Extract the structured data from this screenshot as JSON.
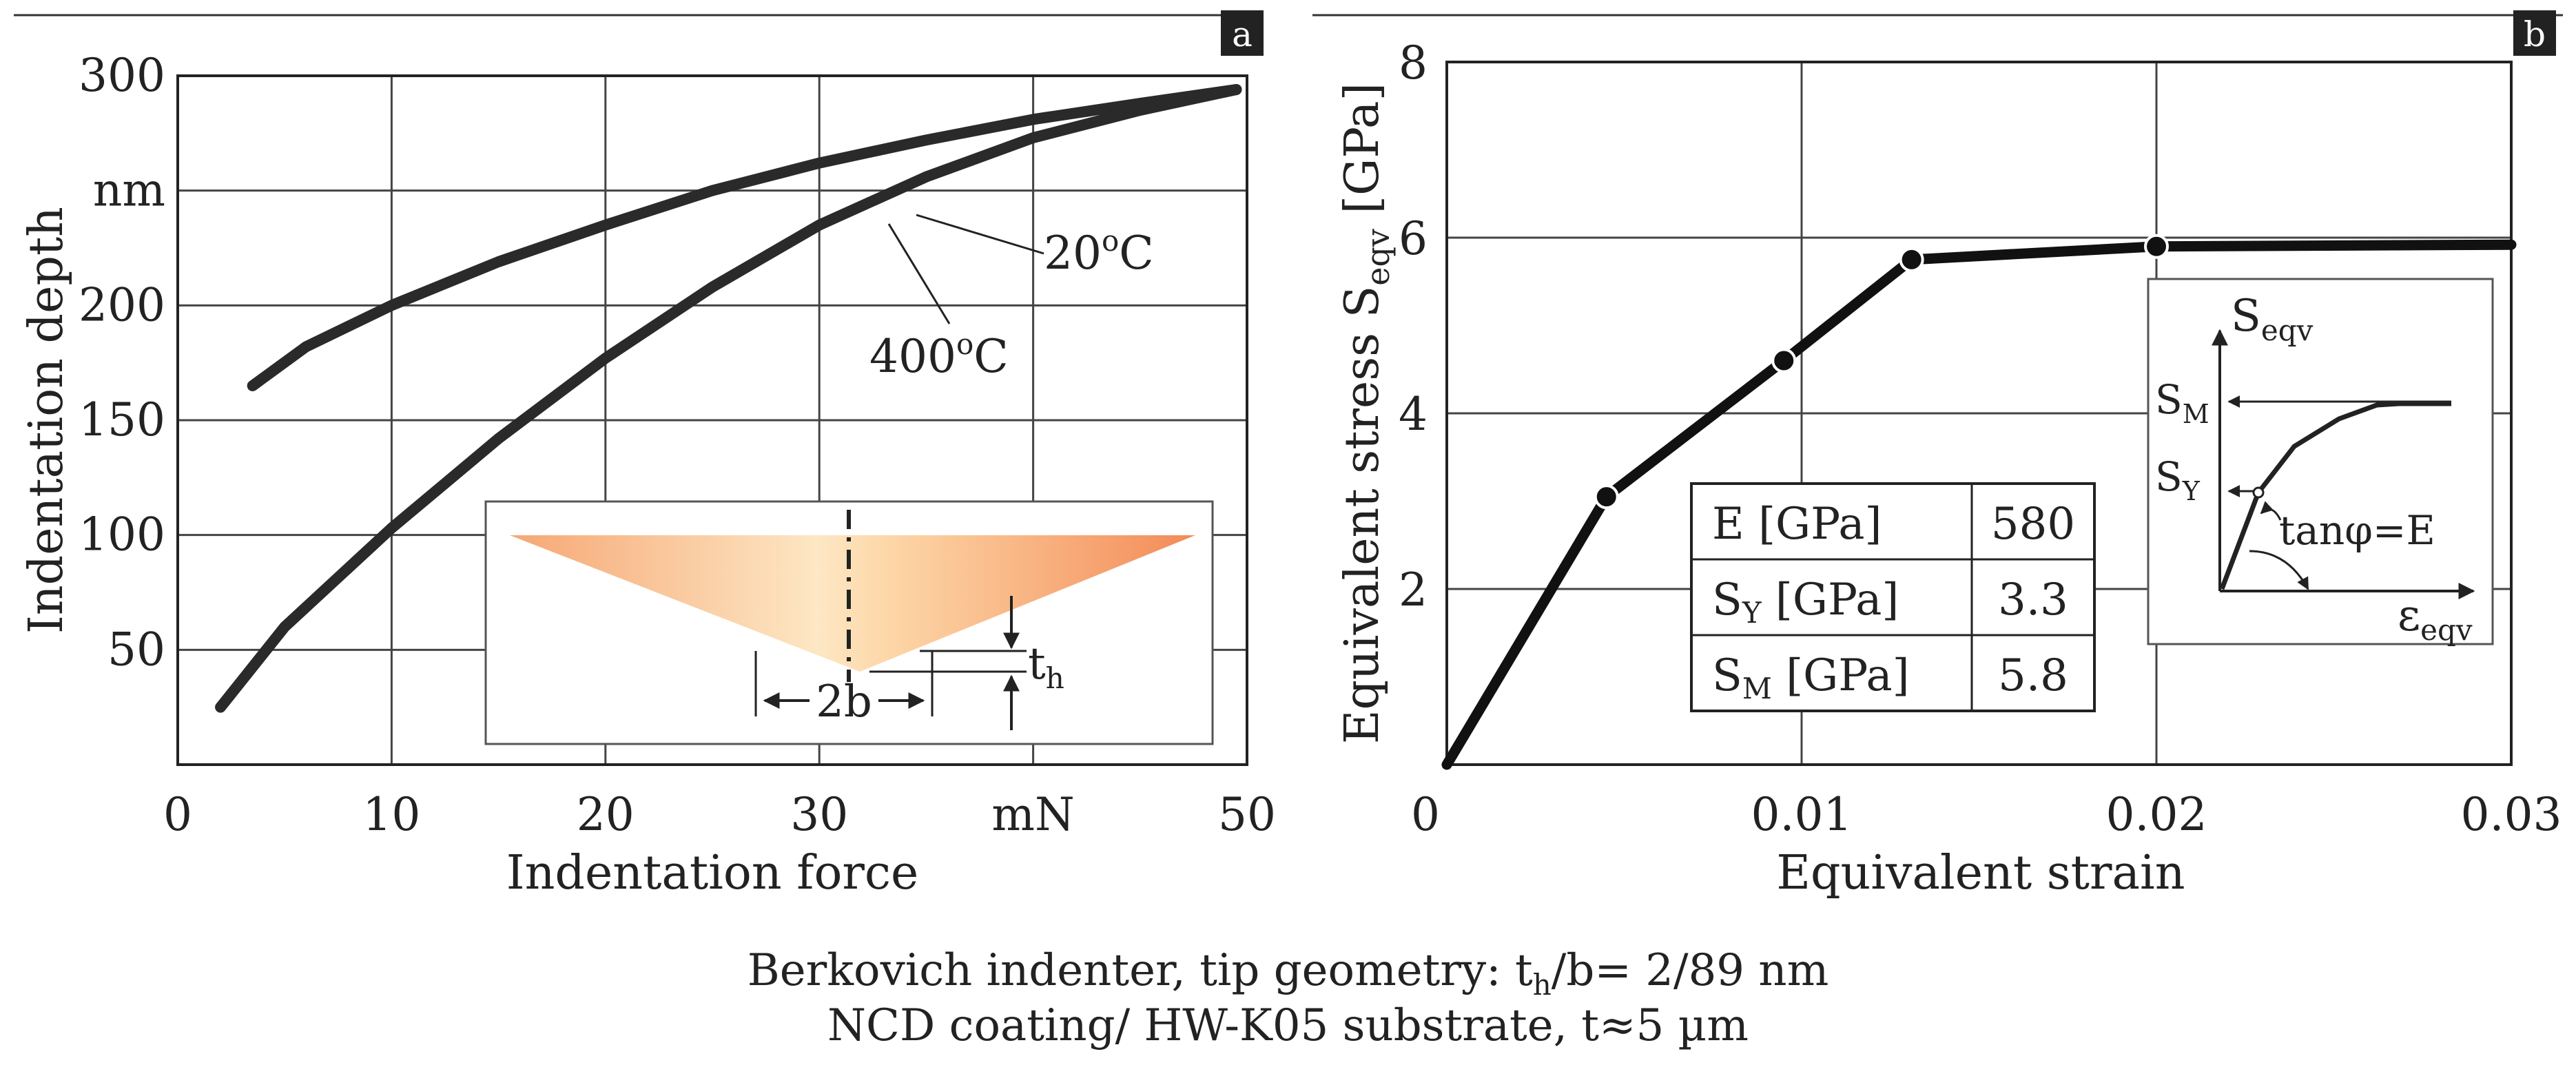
{
  "chart_data": [
    {
      "type": "line",
      "panel_label": "a",
      "xlabel": "Indentation force",
      "ylabel": "Indentation depth",
      "xlim": [
        0,
        50
      ],
      "ylim": [
        0,
        300
      ],
      "x_ticks": [
        "0",
        "10",
        "20",
        "30",
        "mN",
        "50"
      ],
      "y_ticks": [
        "50",
        "100",
        "150",
        "200",
        "nm",
        "300"
      ],
      "grid": true,
      "series": [
        {
          "name": "20oC",
          "label_base": "20",
          "label_sup": "o",
          "label_unit": "C",
          "x": [
            3.5,
            6,
            10,
            15,
            20,
            25,
            30,
            35,
            40,
            45,
            49.5
          ],
          "y": [
            165,
            182,
            200,
            219,
            235,
            250,
            262,
            272,
            281,
            288,
            294
          ]
        },
        {
          "name": "400oC",
          "label_base": "400",
          "label_sup": "o",
          "label_unit": "C",
          "x": [
            2,
            5,
            10,
            15,
            20,
            25,
            30,
            35,
            40,
            45,
            49.5
          ],
          "y": [
            25,
            60,
            103,
            142,
            177,
            208,
            235,
            256,
            273,
            285,
            294
          ]
        }
      ],
      "inset": {
        "label_2b": "2b",
        "label_th": "t",
        "label_th_sub": "h"
      }
    },
    {
      "type": "line",
      "panel_label": "b",
      "xlabel": "Equivalent strain",
      "ylabel_main": "Equivalent stress S",
      "ylabel_sub": "eqv",
      "ylabel_unit": " [GPa]",
      "xlim": [
        0,
        0.03
      ],
      "ylim": [
        0,
        8
      ],
      "x_ticks": [
        "0",
        "0.01",
        "0.02",
        "0.03"
      ],
      "y_ticks": [
        "2",
        "4",
        "6",
        "8"
      ],
      "grid": true,
      "series": [
        {
          "name": "stress-strain",
          "x": [
            0,
            0.0045,
            0.0095,
            0.0131,
            0.02,
            0.03
          ],
          "y": [
            0,
            3.05,
            4.6,
            5.75,
            5.9,
            5.92
          ]
        }
      ],
      "points": [
        {
          "x": 0.0045,
          "y": 3.05
        },
        {
          "x": 0.0095,
          "y": 4.6
        },
        {
          "x": 0.0131,
          "y": 5.75
        },
        {
          "x": 0.02,
          "y": 5.9
        }
      ],
      "table": [
        {
          "main": "E",
          "sub": "",
          "unit": " [GPa]",
          "value": "580"
        },
        {
          "main": "S",
          "sub": "Y",
          "unit": " [GPa]",
          "value": "3.3"
        },
        {
          "main": "S",
          "sub": "M",
          "unit": " [GPa]",
          "value": "5.8"
        }
      ],
      "inset": {
        "y_axis_main": "S",
        "y_axis_sub": "eqv",
        "x_axis_main": "ε",
        "x_axis_sub": "eqv",
        "sm_main": "S",
        "sm_sub": "M",
        "sy_main": "S",
        "sy_sub": "Y",
        "slope_label": "tanφ=E"
      }
    }
  ],
  "caption": {
    "line1_prefix": "Berkovich indenter, tip geometry: t",
    "line1_sub": "h",
    "line1_suffix": "/b= 2/89 nm",
    "line2": "NCD coating/ HW-K05 substrate, t≈5 µm"
  }
}
